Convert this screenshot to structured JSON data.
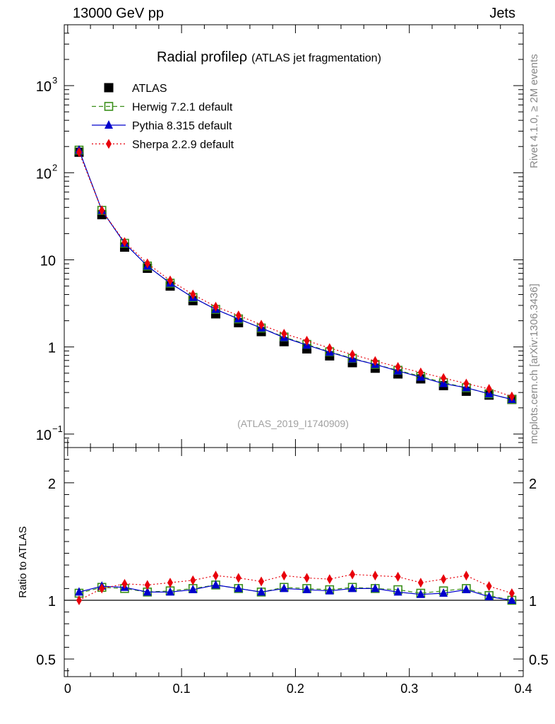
{
  "header": {
    "left": "13000 GeV pp",
    "right": "Jets"
  },
  "side_labels": {
    "rivet": "Rivet 4.1.0, ≥ 2M events",
    "mcplots": "mcplots.cern.ch [arXiv:1306.3436]"
  },
  "chart_data": [
    {
      "type": "scatter",
      "panel": "main",
      "title": "Radial profile",
      "title_symbol": "ρ",
      "subtitle": "(ATLAS jet fragmentation)",
      "watermark": "(ATLAS_2019_I1740909)",
      "yscale": "log",
      "ylim": [
        0.07,
        5000
      ],
      "xlim": [
        -0.003,
        0.4
      ],
      "ytick_labels": [
        {
          "value": 0.1,
          "base": "10",
          "exp": "−1"
        },
        {
          "value": 1,
          "base": "1",
          "exp": ""
        },
        {
          "value": 10,
          "base": "10",
          "exp": ""
        },
        {
          "value": 100,
          "base": "10",
          "exp": "2"
        },
        {
          "value": 1000,
          "base": "10",
          "exp": "3"
        }
      ],
      "legend_position": "top-left",
      "x": [
        0.01,
        0.03,
        0.05,
        0.07,
        0.09,
        0.11,
        0.13,
        0.15,
        0.17,
        0.19,
        0.21,
        0.23,
        0.25,
        0.27,
        0.29,
        0.31,
        0.33,
        0.35,
        0.37,
        0.39
      ],
      "series": [
        {
          "name": "ATLAS",
          "color": "#000000",
          "marker": "square-filled",
          "line": "none",
          "values": [
            172,
            33,
            14,
            8.0,
            5.0,
            3.4,
            2.4,
            1.9,
            1.5,
            1.15,
            0.95,
            0.79,
            0.66,
            0.57,
            0.49,
            0.43,
            0.36,
            0.31,
            0.28,
            0.25
          ]
        },
        {
          "name": "Herwig 7.2.1 default",
          "color": "#3a8f1a",
          "marker": "square-open",
          "line": "dashed",
          "values": [
            182,
            37,
            15.5,
            8.5,
            5.4,
            3.7,
            2.7,
            2.1,
            1.65,
            1.3,
            1.07,
            0.88,
            0.74,
            0.63,
            0.54,
            0.46,
            0.39,
            0.34,
            0.29,
            0.25
          ]
        },
        {
          "name": "Pythia 8.315 default",
          "color": "#0000cc",
          "marker": "triangle-filled",
          "line": "solid",
          "values": [
            182,
            37,
            15.5,
            8.5,
            5.4,
            3.7,
            2.7,
            2.1,
            1.65,
            1.28,
            1.05,
            0.87,
            0.73,
            0.63,
            0.53,
            0.45,
            0.38,
            0.34,
            0.29,
            0.25
          ]
        },
        {
          "name": "Sherpa 2.2.9 default",
          "color": "#e8000b",
          "marker": "diamond-filled",
          "line": "dotted",
          "values": [
            172,
            37,
            16,
            9.1,
            5.8,
            4.0,
            2.9,
            2.3,
            1.8,
            1.42,
            1.18,
            0.97,
            0.82,
            0.69,
            0.59,
            0.51,
            0.44,
            0.38,
            0.33,
            0.27
          ]
        }
      ]
    },
    {
      "type": "scatter",
      "panel": "ratio",
      "ylabel": "Ratio to ATLAS",
      "ylim": [
        0.35,
        2.3
      ],
      "xlim": [
        -0.003,
        0.4
      ],
      "yticks": [
        0.5,
        1,
        2
      ],
      "ytick_labels": [
        "0.5",
        "1",
        "2"
      ],
      "xticks": [
        0,
        0.1,
        0.2,
        0.3,
        0.4
      ],
      "xtick_labels": [
        "0",
        "0.1",
        "0.2",
        "0.3",
        "0.4"
      ],
      "x": [
        0.01,
        0.03,
        0.05,
        0.07,
        0.09,
        0.11,
        0.13,
        0.15,
        0.17,
        0.19,
        0.21,
        0.23,
        0.25,
        0.27,
        0.29,
        0.31,
        0.33,
        0.35,
        0.37,
        0.39
      ],
      "series": [
        {
          "name": "Herwig 7.2.1 default",
          "color": "#3a8f1a",
          "marker": "square-open",
          "line": "dashed",
          "values": [
            1.06,
            1.11,
            1.1,
            1.07,
            1.08,
            1.1,
            1.13,
            1.1,
            1.07,
            1.11,
            1.1,
            1.09,
            1.11,
            1.1,
            1.09,
            1.06,
            1.08,
            1.1,
            1.04,
            1.0
          ]
        },
        {
          "name": "Pythia 8.315 default",
          "color": "#0000cc",
          "marker": "triangle-filled",
          "line": "solid",
          "values": [
            1.07,
            1.12,
            1.11,
            1.07,
            1.07,
            1.09,
            1.13,
            1.1,
            1.07,
            1.1,
            1.09,
            1.08,
            1.1,
            1.1,
            1.07,
            1.05,
            1.06,
            1.09,
            1.03,
            1.0
          ]
        },
        {
          "name": "Sherpa 2.2.9 default",
          "color": "#e8000b",
          "marker": "diamond-filled",
          "line": "dotted",
          "values": [
            1.0,
            1.1,
            1.14,
            1.13,
            1.15,
            1.17,
            1.21,
            1.19,
            1.16,
            1.21,
            1.19,
            1.18,
            1.22,
            1.21,
            1.2,
            1.15,
            1.18,
            1.21,
            1.12,
            1.06
          ]
        }
      ]
    }
  ]
}
